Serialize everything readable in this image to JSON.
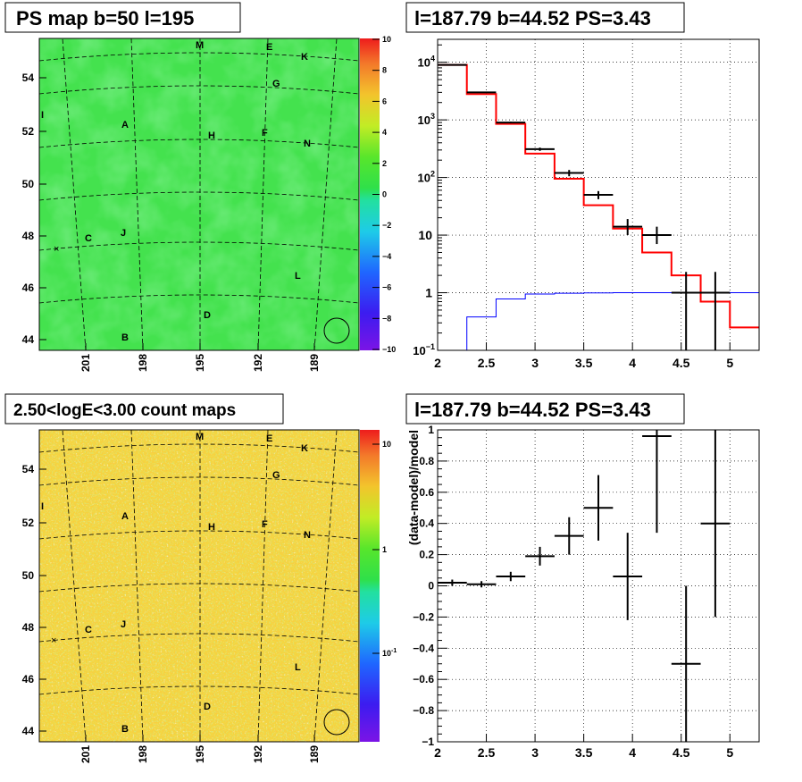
{
  "panels": {
    "ps_map": {
      "title": "PS map b=50 l=195"
    },
    "spectrum": {
      "title": "l=187.79 b=44.52 PS=3.43"
    },
    "count_map": {
      "title": "2.50<logE<3.00 count maps"
    },
    "residual": {
      "title": "l=187.79 b=44.52 PS=3.43"
    }
  },
  "chart_data": [
    {
      "type": "heatmap",
      "title": "PS map b=50 l=195",
      "x_ticks": [
        "201",
        "198",
        "195",
        "192",
        "189"
      ],
      "y_ticks": [
        "44",
        "46",
        "48",
        "50",
        "52",
        "54"
      ],
      "colorbar": {
        "min": -10,
        "max": 10,
        "ticks": [
          "10",
          "8",
          "6",
          "4",
          "2",
          "0",
          "−2",
          "−4",
          "−6",
          "−8",
          "−10"
        ]
      },
      "source_labels": [
        "M",
        "E",
        "K",
        "G",
        "I",
        "A",
        "H",
        "F",
        "N",
        "C",
        "J",
        "L",
        "D",
        "B"
      ],
      "dominant_value": 0.5
    },
    {
      "type": "line",
      "title": "l=187.79 b=44.52 PS=3.43",
      "xlim": [
        2,
        5.3
      ],
      "ylim": [
        0.1,
        25000
      ],
      "yscale": "log",
      "x_ticks": [
        "2",
        "2.5",
        "3",
        "3.5",
        "4",
        "4.5",
        "5"
      ],
      "y_ticks": [
        "10^-1",
        "1",
        "10",
        "10^2",
        "10^3",
        "10^4"
      ],
      "model_steps": {
        "color": "#ff0000",
        "edges": [
          2.0,
          2.3,
          2.6,
          2.9,
          3.2,
          3.5,
          3.8,
          4.1,
          4.4,
          4.7,
          5.0,
          5.3
        ],
        "values": [
          9000,
          2800,
          850,
          260,
          95,
          33,
          13,
          5,
          2,
          0.7,
          0.25
        ]
      },
      "blue_steps": {
        "color": "#0000ff",
        "edges": [
          2.0,
          2.3,
          2.6,
          2.9,
          3.2,
          3.5,
          3.8,
          4.1,
          4.4,
          4.7,
          5.0,
          5.3
        ],
        "values": [
          0.1,
          0.38,
          0.78,
          0.95,
          0.98,
          0.99,
          1.0,
          1.0,
          1.0,
          1.0,
          1.0
        ]
      },
      "data_points": [
        {
          "x": 2.15,
          "y": 9000,
          "xerr": 0.15,
          "ylo": 9000,
          "yhi": 9000
        },
        {
          "x": 2.45,
          "y": 3000,
          "xerr": 0.15,
          "ylo": 3000,
          "yhi": 3000
        },
        {
          "x": 2.75,
          "y": 900,
          "xerr": 0.15,
          "ylo": 870,
          "yhi": 930
        },
        {
          "x": 3.05,
          "y": 310,
          "xerr": 0.15,
          "ylo": 290,
          "yhi": 330
        },
        {
          "x": 3.35,
          "y": 120,
          "xerr": 0.15,
          "ylo": 105,
          "yhi": 135
        },
        {
          "x": 3.65,
          "y": 50,
          "xerr": 0.15,
          "ylo": 42,
          "yhi": 58
        },
        {
          "x": 3.95,
          "y": 14,
          "xerr": 0.15,
          "ylo": 10,
          "yhi": 19
        },
        {
          "x": 4.25,
          "y": 10,
          "xerr": 0.15,
          "ylo": 7,
          "yhi": 14
        },
        {
          "x": 4.55,
          "y": 1,
          "xerr": 0.15,
          "ylo": 0.1,
          "yhi": 2.3
        },
        {
          "x": 4.85,
          "y": 1,
          "xerr": 0.15,
          "ylo": 0.1,
          "yhi": 2.3
        }
      ]
    },
    {
      "type": "heatmap",
      "title": "2.50<logE<3.00 count maps",
      "x_ticks": [
        "201",
        "198",
        "195",
        "192",
        "189"
      ],
      "y_ticks": [
        "44",
        "46",
        "48",
        "50",
        "52",
        "54"
      ],
      "colorbar": {
        "scale": "log",
        "ticks": [
          "10",
          "1",
          "10^-1"
        ]
      },
      "source_labels": [
        "M",
        "E",
        "K",
        "G",
        "I",
        "A",
        "H",
        "F",
        "N",
        "C",
        "J",
        "L",
        "D",
        "B"
      ]
    },
    {
      "type": "scatter",
      "title": "l=187.79 b=44.52 PS=3.43",
      "ylabel": "(data-model)/model",
      "xlim": [
        2,
        5.3
      ],
      "ylim": [
        -1,
        1
      ],
      "x_ticks": [
        "2",
        "2.5",
        "3",
        "3.5",
        "4",
        "4.5",
        "5"
      ],
      "y_ticks": [
        "−1",
        "−0.8",
        "−0.6",
        "−0.4",
        "−0.2",
        "0",
        "0.2",
        "0.4",
        "0.6",
        "0.8",
        "1"
      ],
      "points": [
        {
          "x": 2.15,
          "y": 0.02,
          "xerr": 0.15,
          "yerr": 0.02
        },
        {
          "x": 2.45,
          "y": 0.01,
          "xerr": 0.15,
          "yerr": 0.02
        },
        {
          "x": 2.75,
          "y": 0.06,
          "xerr": 0.15,
          "yerr": 0.03
        },
        {
          "x": 3.05,
          "y": 0.19,
          "xerr": 0.15,
          "yerr": 0.06
        },
        {
          "x": 3.35,
          "y": 0.32,
          "xerr": 0.15,
          "yerr": 0.12
        },
        {
          "x": 3.65,
          "y": 0.5,
          "xerr": 0.15,
          "yerr": 0.21
        },
        {
          "x": 3.95,
          "y": 0.06,
          "xerr": 0.15,
          "yerr": 0.28
        },
        {
          "x": 4.25,
          "y": 0.96,
          "xerr": 0.15,
          "yerr": 0.62
        },
        {
          "x": 4.55,
          "y": -0.5,
          "xerr": 0.15,
          "yerr": 0.5
        },
        {
          "x": 4.85,
          "y": 0.4,
          "xerr": 0.15,
          "yerr": 0.6
        }
      ]
    }
  ]
}
